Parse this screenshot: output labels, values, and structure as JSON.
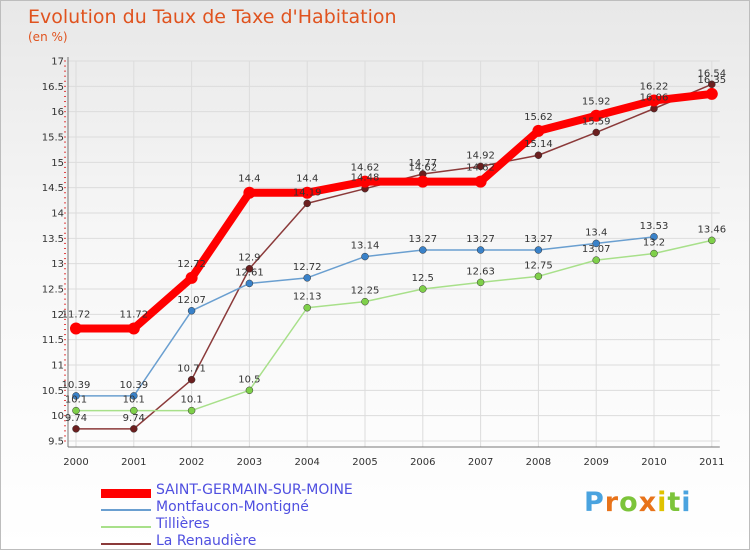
{
  "chart_data": {
    "type": "line",
    "title": "Evolution du Taux de Taxe d'Habitation",
    "unit_label": "(en %)",
    "x": [
      "2000",
      "2001",
      "2002",
      "2003",
      "2004",
      "2005",
      "2006",
      "2007",
      "2008",
      "2009",
      "2010",
      "2011"
    ],
    "ylim": [
      9.5,
      17
    ],
    "yticks": [
      "9.5",
      "10",
      "10.5",
      "11",
      "11.5",
      "12",
      "12.5",
      "13",
      "13.5",
      "14",
      "14.5",
      "15",
      "15.5",
      "16",
      "16.5",
      "17"
    ],
    "series": [
      {
        "name": "SAINT-GERMAIN-SUR-MOINE",
        "color": "#ff0000",
        "marker": "#ff0000",
        "values": [
          11.72,
          11.72,
          12.72,
          14.4,
          14.4,
          14.62,
          14.62,
          14.62,
          15.62,
          15.92,
          16.22,
          16.35
        ],
        "labels": [
          "11.72",
          "11.72",
          "12.72",
          "14.4",
          "14.4",
          "14.62",
          "14.62",
          "14.62",
          "15.62",
          "15.92",
          "16.22",
          "16.35"
        ]
      },
      {
        "name": "Montfaucon-Montigné",
        "color": "#6a9fd0",
        "marker": "#3a82c9",
        "values": [
          10.39,
          10.39,
          12.07,
          12.61,
          12.72,
          13.14,
          13.27,
          13.27,
          13.27,
          13.4,
          13.53,
          null
        ],
        "labels": [
          "10.39",
          "10.39",
          "12.07",
          "12.61",
          "12.72",
          "13.14",
          "13.27",
          "13.27",
          "13.27",
          "13.4",
          "13.53",
          ""
        ]
      },
      {
        "name": "Tillières",
        "color": "#a8e08a",
        "marker": "#7fd04a",
        "values": [
          10.1,
          10.1,
          10.1,
          10.5,
          12.13,
          12.25,
          12.5,
          12.63,
          12.75,
          13.07,
          13.2,
          13.46
        ],
        "labels": [
          "10.1",
          "10.1",
          "10.1",
          "10.5",
          "12.13",
          "12.25",
          "12.5",
          "12.63",
          "12.75",
          "13.07",
          "13.2",
          "13.46"
        ]
      },
      {
        "name": "La Renaudière",
        "color": "#8b3a3a",
        "marker": "#6b1f1f",
        "values": [
          9.74,
          9.74,
          10.71,
          12.9,
          14.19,
          14.48,
          14.77,
          14.92,
          15.14,
          15.59,
          16.06,
          16.54
        ],
        "labels": [
          "9.74",
          "9.74",
          "10.71",
          "12.9",
          "14.19",
          "14.48",
          "14.77",
          "14.92",
          "15.14",
          "15.59",
          "16.06",
          "16.54"
        ]
      }
    ]
  },
  "logo": {
    "text": "Proxiti",
    "colors": [
      "#4aa3df",
      "#e8731a",
      "#7cc43a",
      "#e8731a",
      "#e0c200",
      "#7cc43a",
      "#4aa3df"
    ]
  }
}
